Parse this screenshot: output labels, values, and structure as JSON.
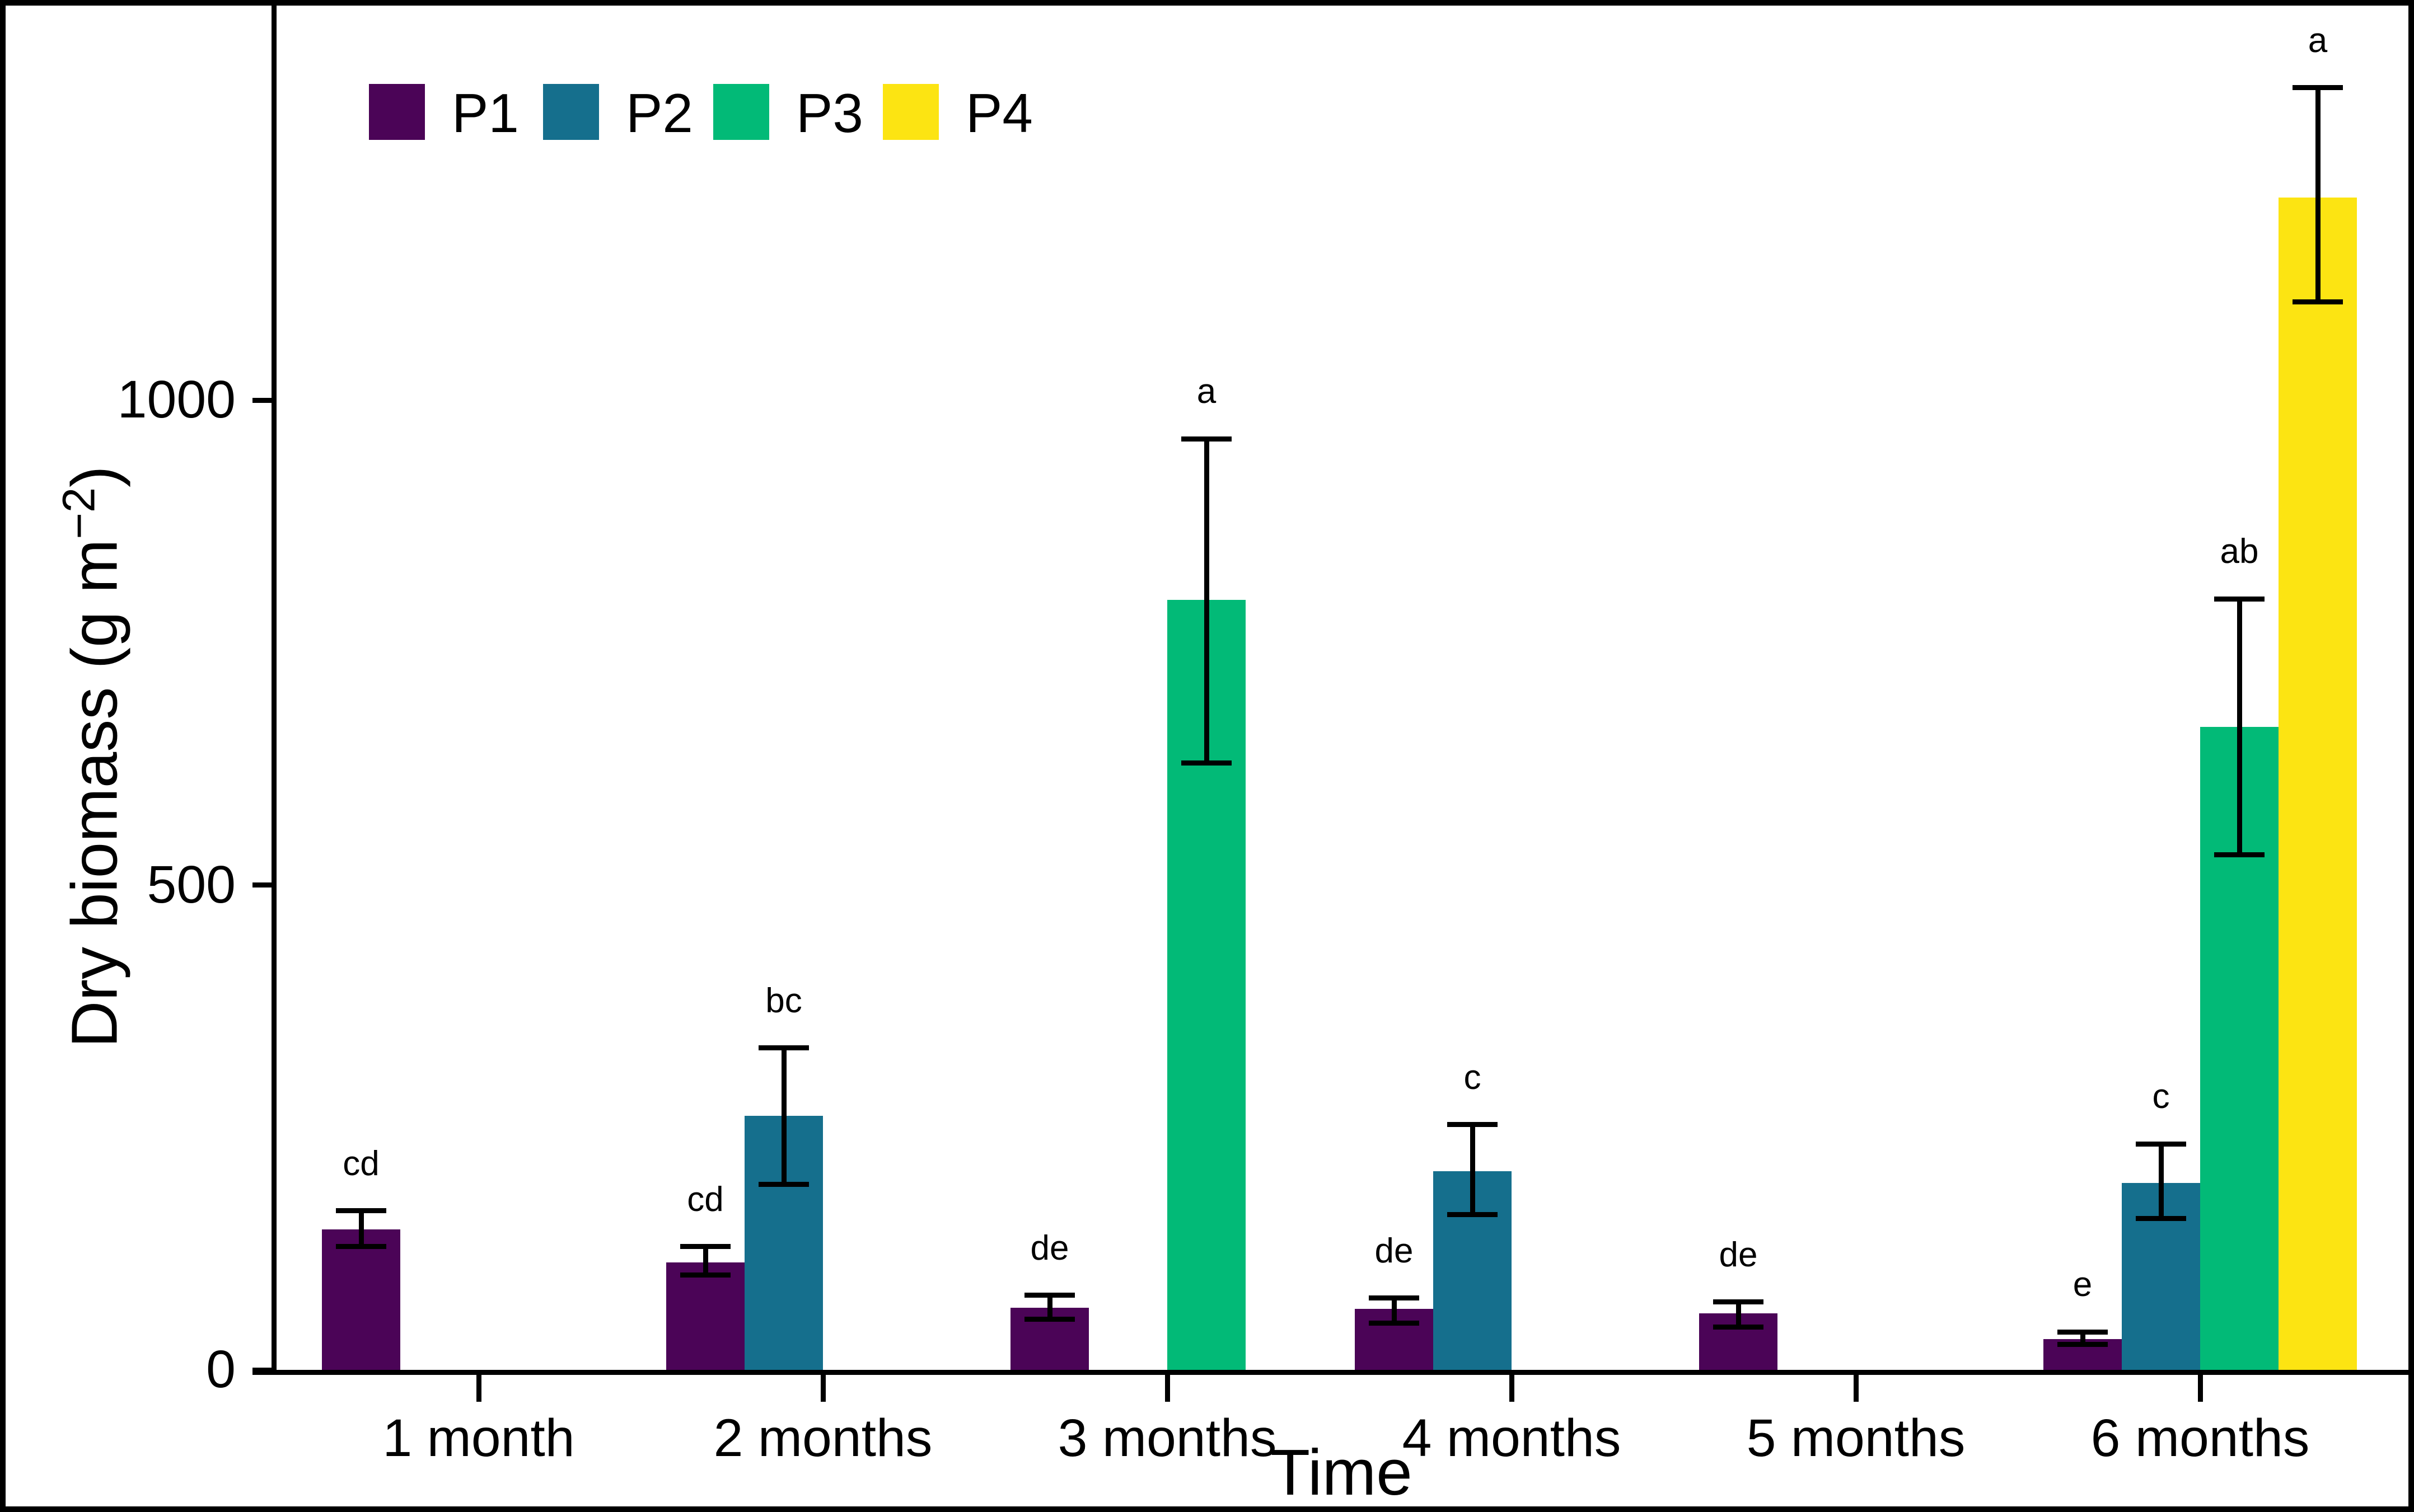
{
  "chart_data": {
    "type": "bar",
    "title": "",
    "xlabel": "Time",
    "ylabel": "Dry biomass (g m⁻²)",
    "ylabel_parts": {
      "main": "Dry biomass (g m",
      "sup": "−2",
      "close": ")"
    },
    "categories": [
      "1 month",
      "2 months",
      "3 months",
      "4 months",
      "5 months",
      "6 months"
    ],
    "yticks": [
      "0",
      "500",
      "1000"
    ],
    "ytick_values": [
      0,
      500,
      1000
    ],
    "ylim": [
      0,
      1400
    ],
    "grid": false,
    "legend_position": "top-left-inside",
    "error_bars": true,
    "series": [
      {
        "name": "P1",
        "color": "#4B0457",
        "values": [
          145,
          111,
          64,
          63,
          58,
          32
        ],
        "err_lo": [
          127,
          98,
          52,
          48,
          44,
          26
        ],
        "err_hi": [
          164,
          127,
          77,
          74,
          70,
          39
        ],
        "letters": [
          "cd",
          "cd",
          "de",
          "de",
          "de",
          "e"
        ]
      },
      {
        "name": "P2",
        "color": "#156F8D",
        "values": [
          null,
          262,
          null,
          205,
          null,
          193
        ],
        "err_lo": [
          null,
          191,
          null,
          160,
          null,
          156
        ],
        "err_hi": [
          null,
          332,
          null,
          253,
          null,
          233
        ],
        "letters": [
          null,
          "bc",
          null,
          "c",
          null,
          "c"
        ]
      },
      {
        "name": "P3",
        "color": "#02BA77",
        "values": [
          null,
          null,
          794,
          null,
          null,
          663
        ],
        "err_lo": [
          null,
          null,
          626,
          null,
          null,
          531
        ],
        "err_hi": [
          null,
          null,
          960,
          null,
          null,
          795
        ],
        "letters": [
          null,
          null,
          "a",
          null,
          null,
          "ab"
        ]
      },
      {
        "name": "P4",
        "color": "#FCE412",
        "values": [
          null,
          null,
          null,
          null,
          null,
          1209
        ],
        "err_lo": [
          null,
          null,
          null,
          null,
          null,
          1101
        ],
        "err_hi": [
          null,
          null,
          null,
          null,
          null,
          1322
        ],
        "letters": [
          null,
          null,
          null,
          null,
          null,
          "a"
        ]
      }
    ],
    "axis_color": "#000000",
    "text_color": "#000000"
  }
}
